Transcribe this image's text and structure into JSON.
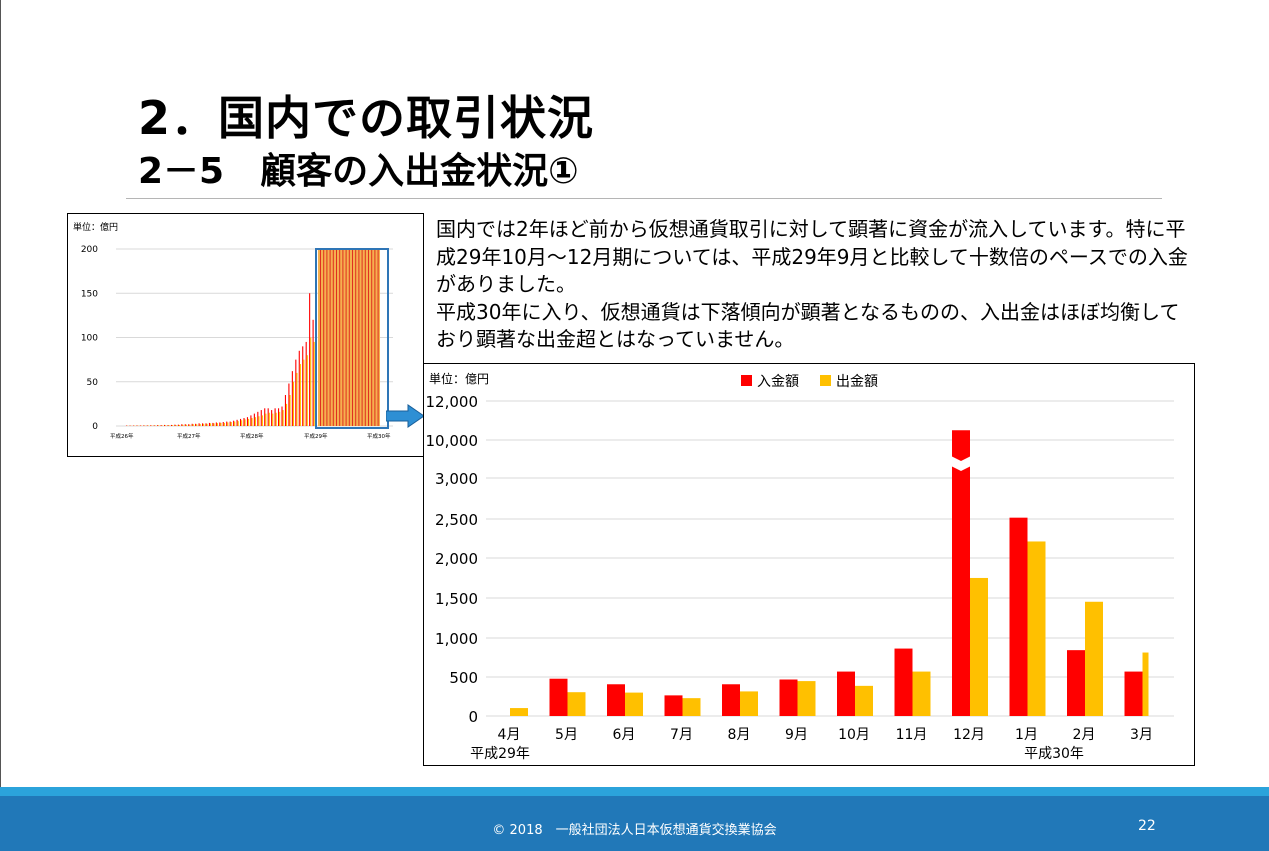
{
  "slide": {
    "title": "2．国内での取引状況",
    "subtitle": "2－5　顧客の入出金状況①",
    "paragraph1": "国内では2年ほど前から仮想通貨取引に対して顕著に資金が流入しています。特に平成29年10月～12月期については、平成29年9月と比較して十数倍のペースでの入金がありました。",
    "paragraph2": "平成30年に入り、仮想通貨は下落傾向が顕著となるものの、入出金はほぼ均衡しており顕著な出金超とはなっていません。",
    "footer": "© 2018　一般社団法人日本仮想通貨交換業協会",
    "page_number": "22"
  },
  "colors": {
    "deposit": "#ff0000",
    "withdrawal": "#ffc000",
    "highlight_box": "#2e75b6",
    "arrow": "#2e8fd4",
    "footer": "#2178b8",
    "footer_band": "#2ba3db"
  },
  "chart_data": [
    {
      "type": "bar",
      "unit_label": "単位：億円",
      "ylim": [
        0,
        200
      ],
      "yticks": [
        0,
        50,
        100,
        150,
        200
      ],
      "xlabels": [
        "平成26年",
        "平成27年",
        "平成28年",
        "平成29年",
        "平成30年"
      ],
      "grid": true,
      "highlighted_range": "平成29年10月 – 平成30年3月",
      "series": [
        {
          "name": "入金額",
          "values": [
            0.5,
            0.5,
            0.5,
            0.6,
            0.6,
            0.7,
            0.7,
            0.8,
            0.8,
            1,
            1,
            1.2,
            1,
            1.2,
            1.5,
            1.5,
            2,
            2,
            2,
            2.5,
            2.5,
            3,
            3,
            3,
            3.5,
            3.5,
            4,
            4,
            4.5,
            5,
            5,
            6,
            7,
            8,
            9,
            10,
            12,
            14,
            16,
            18,
            20,
            20,
            18,
            20,
            20,
            22,
            35,
            48,
            62,
            75,
            85,
            90,
            95,
            150,
            120
          ]
        },
        {
          "name": "出金額",
          "values": [
            0.3,
            0.3,
            0.4,
            0.4,
            0.4,
            0.5,
            0.5,
            0.6,
            0.6,
            0.7,
            0.7,
            0.8,
            0.8,
            1,
            1,
            1.2,
            1.4,
            1.5,
            1.5,
            2,
            2,
            2.2,
            2.5,
            2.5,
            3,
            3,
            3.2,
            3.5,
            3.5,
            4,
            4.5,
            5,
            5.5,
            6.5,
            7.5,
            8,
            9,
            10,
            11,
            12,
            14,
            15,
            14,
            15,
            16,
            18,
            25,
            35,
            50,
            60,
            70,
            75,
            80,
            100,
            95
          ]
        }
      ]
    },
    {
      "type": "bar",
      "unit_label": "単位：億円",
      "legend": [
        "入金額",
        "出金額"
      ],
      "legend_position": "top",
      "categories": [
        "4月",
        "5月",
        "6月",
        "7月",
        "8月",
        "9月",
        "10月",
        "11月",
        "12月",
        "1月",
        "2月",
        "3月"
      ],
      "year_labels": [
        {
          "text": "平成29年",
          "under": "4月"
        },
        {
          "text": "平成30年",
          "under": "1月"
        }
      ],
      "yticks": [
        "0",
        "500",
        "1,000",
        "1,500",
        "2,000",
        "2,500",
        "3,000",
        "10,000",
        "12,000"
      ],
      "axis_break": "between 3,000 and 10,000",
      "grid": true,
      "series": [
        {
          "name": "入金額",
          "values": [
            0,
            470,
            400,
            260,
            400,
            460,
            560,
            850,
            10500,
            2500,
            830,
            560
          ]
        },
        {
          "name": "出金額",
          "values": [
            100,
            300,
            295,
            225,
            310,
            440,
            380,
            560,
            1740,
            2200,
            1440,
            800
          ]
        }
      ]
    }
  ]
}
